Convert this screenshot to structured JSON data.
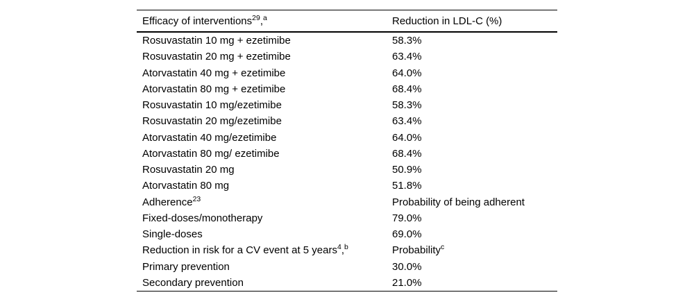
{
  "page": {
    "background": "#ffffff",
    "text_color": "#000000",
    "rule_color": "#000000"
  },
  "table": {
    "header": {
      "col1": [
        {
          "t": "Efficacy of interventions"
        },
        {
          "t": "29",
          "sup": true
        },
        {
          "t": ","
        },
        {
          "t": "a",
          "sup": true
        }
      ],
      "col2": [
        {
          "t": "Reduction in LDL-C (%)"
        }
      ]
    },
    "rows": [
      {
        "label": [
          {
            "t": "Rosuvastatin 10 mg + ezetimibe"
          }
        ],
        "value": [
          {
            "t": "58.3%"
          }
        ]
      },
      {
        "label": [
          {
            "t": "Rosuvastatin 20 mg + ezetimibe"
          }
        ],
        "value": [
          {
            "t": "63.4%"
          }
        ]
      },
      {
        "label": [
          {
            "t": "Atorvastatin 40 mg + ezetimibe"
          }
        ],
        "value": [
          {
            "t": "64.0%"
          }
        ]
      },
      {
        "label": [
          {
            "t": "Atorvastatin 80 mg + ezetimibe"
          }
        ],
        "value": [
          {
            "t": "68.4%"
          }
        ]
      },
      {
        "label": [
          {
            "t": "Rosuvastatin 10 mg/ezetimibe"
          }
        ],
        "value": [
          {
            "t": "58.3%"
          }
        ]
      },
      {
        "label": [
          {
            "t": "Rosuvastatin 20 mg/ezetimibe"
          }
        ],
        "value": [
          {
            "t": "63.4%"
          }
        ]
      },
      {
        "label": [
          {
            "t": "Atorvastatin 40 mg/ezetimibe"
          }
        ],
        "value": [
          {
            "t": "64.0%"
          }
        ]
      },
      {
        "label": [
          {
            "t": "Atorvastatin 80 mg/ ezetimibe"
          }
        ],
        "value": [
          {
            "t": "68.4%"
          }
        ]
      },
      {
        "label": [
          {
            "t": "Rosuvastatin 20 mg"
          }
        ],
        "value": [
          {
            "t": "50.9%"
          }
        ]
      },
      {
        "label": [
          {
            "t": "Atorvastatin 80 mg"
          }
        ],
        "value": [
          {
            "t": "51.8%"
          }
        ]
      },
      {
        "label": [
          {
            "t": "Adherence"
          },
          {
            "t": "23",
            "sup": true
          }
        ],
        "value": [
          {
            "t": "Probability of being adherent"
          }
        ]
      },
      {
        "label": [
          {
            "t": "Fixed-doses/monotherapy"
          }
        ],
        "value": [
          {
            "t": "79.0%"
          }
        ]
      },
      {
        "label": [
          {
            "t": "Single-doses"
          }
        ],
        "value": [
          {
            "t": "69.0%"
          }
        ]
      },
      {
        "label": [
          {
            "t": "Reduction in risk for a CV event at 5 years"
          },
          {
            "t": "4",
            "sup": true
          },
          {
            "t": ","
          },
          {
            "t": "b",
            "sup": true
          }
        ],
        "value": [
          {
            "t": "Probability"
          },
          {
            "t": "c",
            "sup": true
          }
        ]
      },
      {
        "label": [
          {
            "t": "Primary prevention"
          }
        ],
        "value": [
          {
            "t": "30.0%"
          }
        ]
      },
      {
        "label": [
          {
            "t": "Secondary prevention"
          }
        ],
        "value": [
          {
            "t": "21.0%"
          }
        ]
      }
    ]
  }
}
